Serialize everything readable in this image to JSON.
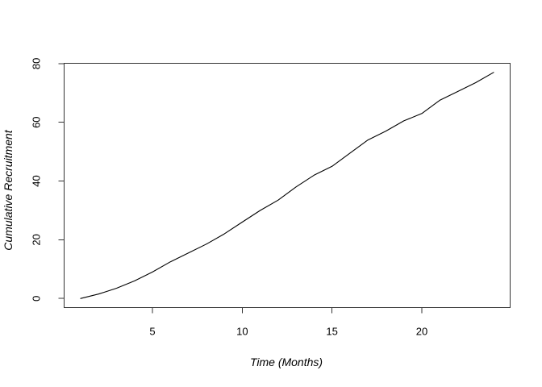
{
  "chart_data": {
    "type": "line",
    "title": "",
    "xlabel": "Time (Months)",
    "ylabel": "Cumulative Recruitment",
    "x": [
      1,
      2,
      3,
      4,
      5,
      6,
      7,
      8,
      9,
      10,
      11,
      12,
      13,
      14,
      15,
      16,
      17,
      18,
      19,
      20,
      21,
      22,
      23,
      24
    ],
    "series": [
      {
        "name": "Cumulative Recruitment",
        "values": [
          0,
          1.5,
          3.5,
          6,
          9,
          12.5,
          15.5,
          18.5,
          22,
          26,
          30,
          33.5,
          38,
          42,
          45,
          49.5,
          54,
          57,
          60.5,
          63,
          67.5,
          70.5,
          73.5,
          77
        ]
      }
    ],
    "xticks": [
      5,
      10,
      15,
      20
    ],
    "yticks": [
      0,
      20,
      40,
      60,
      80
    ],
    "xlim": [
      0.08,
      24.92
    ],
    "ylim": [
      -3.1,
      80.1
    ],
    "grid": false,
    "legend_position": "none",
    "line_color": "#000000",
    "axis_color": "#333333",
    "background_color": "#ffffff"
  }
}
